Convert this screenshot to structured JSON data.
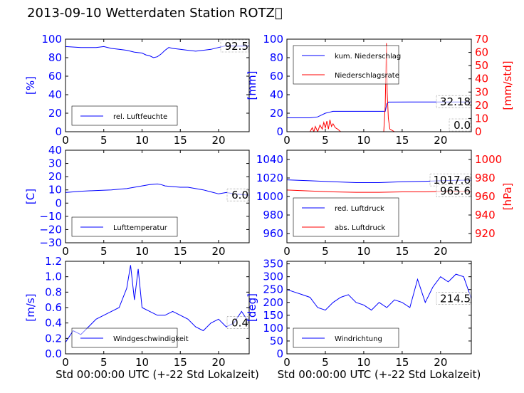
{
  "figure": {
    "title": "2013-09-10 Wetterdaten Station ROTZ\u0000"
  },
  "colors": {
    "blue": "#0000ff",
    "red": "#ff0000",
    "black": "#000000",
    "legend_border": "#000000"
  },
  "chart_data": [
    {
      "type": "line",
      "ylabel": "[%]",
      "xlim": [
        0,
        24
      ],
      "ylim": [
        0,
        100
      ],
      "xticks": [
        "0",
        "5",
        "10",
        "15",
        "20"
      ],
      "yticks": [
        "0",
        "20",
        "40",
        "60",
        "80",
        "100"
      ],
      "legend": {
        "placement": "lower-left",
        "entries": [
          {
            "name": "rel. Luftfeuchte",
            "color": "#0000ff"
          }
        ]
      },
      "last_value_label": "92.5",
      "series": [
        {
          "name": "rel. Luftfeuchte",
          "color": "#0000ff",
          "x": [
            0,
            2,
            4,
            5,
            6,
            7,
            8,
            9,
            10,
            10.5,
            11,
            11.5,
            12,
            12.5,
            13,
            13.5,
            14,
            15,
            16,
            17,
            18,
            19,
            20,
            21,
            22,
            23,
            24
          ],
          "y": [
            92,
            91,
            91,
            92,
            90,
            89,
            88,
            86,
            85,
            83,
            82,
            80,
            81,
            84,
            88,
            91,
            90,
            89,
            88,
            87,
            88,
            89,
            91,
            93,
            92.5,
            92.5,
            92.5
          ]
        }
      ]
    },
    {
      "type": "line",
      "ylabel": "[mm]",
      "ylabel_right": "[mm/std]",
      "xlim": [
        0,
        24
      ],
      "ylim": [
        0,
        100
      ],
      "ylim_right": [
        0,
        70
      ],
      "xticks": [
        "0",
        "5",
        "10",
        "15",
        "20"
      ],
      "yticks": [
        "0",
        "20",
        "40",
        "60",
        "80",
        "100"
      ],
      "yticks_right": [
        "0",
        "10",
        "20",
        "30",
        "40",
        "50",
        "60",
        "70"
      ],
      "legend": {
        "placement": "upper-left",
        "entries": [
          {
            "name": "kum. Niederschlag",
            "color": "#0000ff"
          },
          {
            "name": "Niederschlagsrate",
            "color": "#ff0000"
          }
        ]
      },
      "last_value_labels": [
        "32.18",
        "0.0"
      ],
      "series": [
        {
          "name": "kum. Niederschlag",
          "color": "#0000ff",
          "axis": "left",
          "x": [
            0,
            3,
            4,
            4.5,
            5,
            5.5,
            6,
            7,
            8,
            12.8,
            13.0,
            13.2,
            16,
            20,
            24
          ],
          "y": [
            15,
            15,
            16,
            18,
            20,
            21,
            22,
            22,
            22,
            22,
            30,
            32,
            32.1,
            32.18,
            32.18
          ]
        },
        {
          "name": "Niederschlagsrate",
          "color": "#ff0000",
          "axis": "right",
          "x": [
            0,
            3,
            3.3,
            3.5,
            3.7,
            4,
            4.3,
            4.6,
            4.8,
            5.0,
            5.2,
            5.4,
            5.6,
            5.8,
            6,
            6.3,
            6.6,
            7,
            8,
            12.6,
            12.8,
            12.95,
            13.05,
            13.2,
            13.4,
            14,
            20,
            24
          ],
          "y": [
            0,
            0,
            3,
            0,
            4,
            0,
            5,
            2,
            7,
            3,
            8,
            2,
            9,
            4,
            6,
            3,
            2,
            0,
            0,
            0,
            20,
            67,
            30,
            10,
            2,
            0,
            0,
            0
          ]
        }
      ]
    },
    {
      "type": "line",
      "ylabel": "[C]",
      "xlim": [
        0,
        24
      ],
      "ylim": [
        -30,
        40
      ],
      "xticks": [
        "0",
        "5",
        "10",
        "15",
        "20"
      ],
      "yticks": [
        "−30",
        "−20",
        "−10",
        "0",
        "10",
        "20",
        "30",
        "40"
      ],
      "legend": {
        "placement": "lower-left",
        "entries": [
          {
            "name": "Lufttemperatur",
            "color": "#0000ff"
          }
        ]
      },
      "last_value_label": "6.0",
      "series": [
        {
          "name": "Lufttemperatur",
          "color": "#0000ff",
          "x": [
            0,
            2,
            4,
            6,
            7,
            8,
            9,
            10,
            11,
            12,
            12.5,
            13,
            14,
            15,
            16,
            17,
            18,
            19,
            20,
            21,
            22,
            23,
            24
          ],
          "y": [
            8,
            9,
            9.5,
            10,
            10.5,
            11,
            12,
            13,
            14,
            14.5,
            14,
            13,
            12.5,
            12,
            12,
            11,
            10,
            8.5,
            7,
            8,
            7,
            6.5,
            6
          ]
        }
      ]
    },
    {
      "type": "line",
      "ylabel_right": "[hPa]",
      "xlim": [
        0,
        24
      ],
      "ylim": [
        950,
        1050
      ],
      "ylim_right": [
        910,
        1010
      ],
      "xticks": [
        "0",
        "5",
        "10",
        "15",
        "20"
      ],
      "yticks": [
        "960",
        "980",
        "1000",
        "1020",
        "1040"
      ],
      "yticks_right": [
        "920",
        "940",
        "960",
        "980",
        "1000"
      ],
      "legend": {
        "placement": "lower-left",
        "entries": [
          {
            "name": "red. Luftdruck",
            "color": "#0000ff"
          },
          {
            "name": "abs. Luftdruck",
            "color": "#ff0000"
          }
        ]
      },
      "last_value_labels": [
        "1017.6",
        "965.6"
      ],
      "series": [
        {
          "name": "red. Luftdruck",
          "color": "#0000ff",
          "axis": "left",
          "x": [
            0,
            3,
            6,
            9,
            12,
            15,
            18,
            20,
            22,
            24
          ],
          "y": [
            1018,
            1017,
            1016,
            1015,
            1015,
            1016,
            1016.5,
            1017,
            1017.5,
            1017.6
          ]
        },
        {
          "name": "abs. Luftdruck",
          "color": "#ff0000",
          "axis": "right",
          "x": [
            0,
            3,
            6,
            9,
            12,
            15,
            18,
            20,
            22,
            24
          ],
          "y": [
            967,
            966,
            965,
            964.5,
            964.5,
            965,
            965,
            965.5,
            965.6,
            965.6
          ]
        }
      ]
    },
    {
      "type": "line",
      "ylabel": "[m/s]",
      "xlabel": "Std 00:00:00 UTC (+-22 Std Lokalzeit)",
      "xlim": [
        0,
        24
      ],
      "ylim": [
        0,
        1.2
      ],
      "xticks": [
        "0",
        "5",
        "10",
        "15",
        "20"
      ],
      "yticks": [
        "0.0",
        "0.2",
        "0.4",
        "0.6",
        "0.8",
        "1.0",
        "1.2"
      ],
      "legend": {
        "placement": "lower-left",
        "entries": [
          {
            "name": "Windgeschwindigkeit",
            "color": "#0000ff"
          }
        ]
      },
      "last_value_label": "0.4",
      "series": [
        {
          "name": "Windgeschwindigkeit",
          "color": "#0000ff",
          "x": [
            0,
            1,
            2,
            3,
            4,
            5,
            6,
            7,
            8,
            8.5,
            9,
            9.5,
            10,
            11,
            12,
            13,
            14,
            15,
            16,
            17,
            18,
            19,
            20,
            21,
            22,
            23,
            24
          ],
          "y": [
            0.15,
            0.3,
            0.25,
            0.35,
            0.45,
            0.5,
            0.55,
            0.6,
            0.85,
            1.15,
            0.7,
            1.1,
            0.6,
            0.55,
            0.5,
            0.5,
            0.55,
            0.5,
            0.45,
            0.35,
            0.3,
            0.4,
            0.45,
            0.35,
            0.4,
            0.55,
            0.4
          ]
        }
      ]
    },
    {
      "type": "line",
      "ylabel": "[deg]",
      "xlabel": "Std 00:00:00 UTC (+-22 Std Lokalzeit)",
      "xlim": [
        0,
        24
      ],
      "ylim": [
        0,
        360
      ],
      "xticks": [
        "0",
        "5",
        "10",
        "15",
        "20"
      ],
      "yticks": [
        "0",
        "50",
        "100",
        "150",
        "200",
        "250",
        "300",
        "350"
      ],
      "legend": {
        "placement": "lower-left",
        "entries": [
          {
            "name": "Windrichtung",
            "color": "#0000ff"
          }
        ]
      },
      "last_value_label": "214.5",
      "series": [
        {
          "name": "Windrichtung",
          "color": "#0000ff",
          "x": [
            0,
            1,
            2,
            3,
            4,
            5,
            6,
            7,
            8,
            9,
            10,
            11,
            12,
            13,
            14,
            15,
            16,
            17,
            18,
            19,
            20,
            21,
            22,
            23,
            24
          ],
          "y": [
            250,
            240,
            230,
            220,
            180,
            170,
            200,
            220,
            230,
            200,
            190,
            170,
            200,
            180,
            210,
            200,
            180,
            290,
            200,
            260,
            300,
            280,
            310,
            300,
            214.5
          ]
        }
      ]
    }
  ]
}
